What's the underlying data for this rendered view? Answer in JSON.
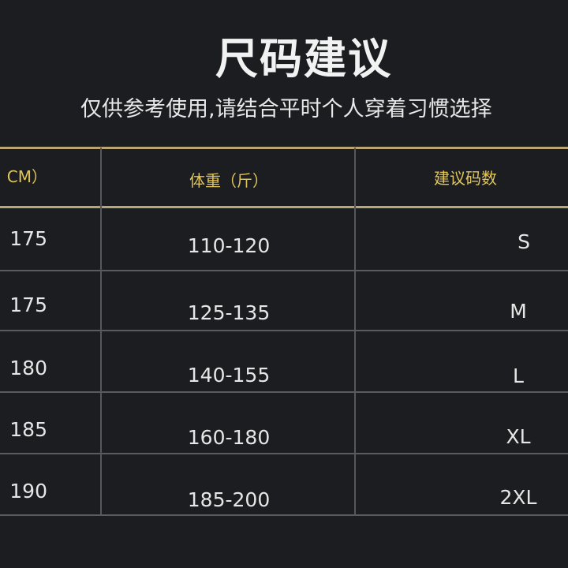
{
  "title": "尺码建议",
  "subtitle": "仅供参考使用,请结合平时个人穿着习惯选择",
  "table": {
    "headers": [
      "CM）",
      "体重（斤）",
      "建议码数"
    ],
    "rows": [
      [
        "175",
        "110-120",
        "S"
      ],
      [
        "175",
        "125-135",
        "M"
      ],
      [
        "180",
        "140-155",
        "L"
      ],
      [
        "185",
        "160-180",
        "XL"
      ],
      [
        "190",
        "185-200",
        "2XL"
      ]
    ]
  },
  "colors": {
    "background": "#1b1d20",
    "header_text": "#e0c55a",
    "header_rule": "#b9a672"
  }
}
